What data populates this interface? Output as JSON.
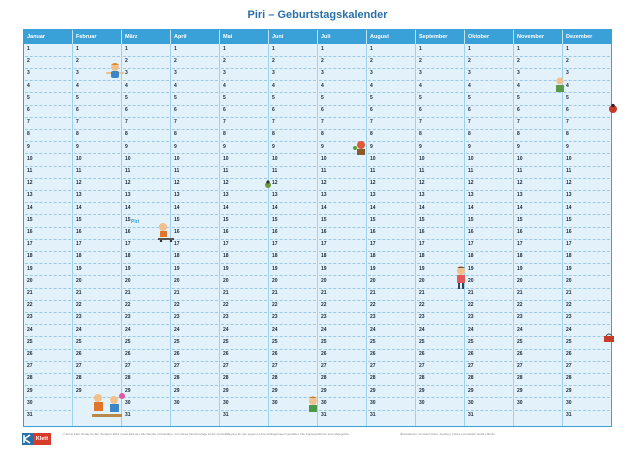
{
  "title": "Piri – Geburtstagskalender",
  "months": [
    "Januar",
    "Februar",
    "März",
    "April",
    "Mai",
    "Juni",
    "Juli",
    "August",
    "September",
    "Oktober",
    "November",
    "Dezember"
  ],
  "days_in_month": [
    31,
    29,
    31,
    30,
    31,
    30,
    31,
    31,
    30,
    31,
    30,
    31
  ],
  "piri_label": "Piri",
  "footer_left": "© Ernst Klett Verlag GmbH, Stuttgart 2014 | www.klett.de | Alle Rechte vorbehalten. Von dieser Druckvorlage ist die Vervielfältigung für den eigenen Unterrichtsgebrauch gestattet. Die Kopiergebühren sind abgegolten.",
  "footer_right": "Illustrationen: Irmtraud Guhe, Freiburg | Neue Lernwelten GmbH, Berlin",
  "brand": "Klett",
  "colors": {
    "accent": "#3aa0d8",
    "grid": "#e2f1fa",
    "title": "#2a6fa8",
    "brand": "#d63c2b"
  }
}
